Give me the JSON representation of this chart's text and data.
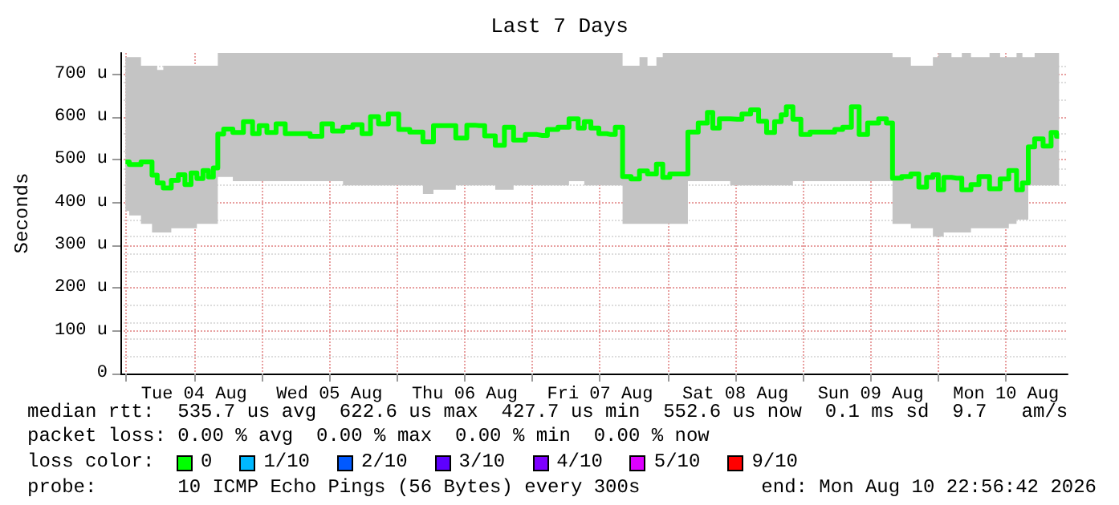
{
  "chart_data": {
    "type": "step",
    "title": "Last 7 Days",
    "ylabel": "Seconds",
    "x": [
      "2026-08-03T23:50",
      "2026-08-04T01:10",
      "2026-08-04T04:00",
      "2026-08-04T05:05",
      "2026-08-04T05:50",
      "2026-08-04T07:15",
      "2026-08-04T08:40",
      "2026-08-04T09:45",
      "2026-08-04T11:00",
      "2026-08-04T11:55",
      "2026-08-04T13:05",
      "2026-08-04T14:05",
      "2026-08-04T15:00",
      "2026-08-04T15:50",
      "2026-08-04T16:35",
      "2026-08-04T17:55",
      "2026-08-04T19:50",
      "2026-08-04T21:40",
      "2026-08-04T23:05",
      "2026-08-05T00:00",
      "2026-08-05T01:50",
      "2026-08-05T03:15",
      "2026-08-05T05:05",
      "2026-08-05T07:25",
      "2026-08-05T09:45",
      "2026-08-05T11:35",
      "2026-08-05T13:30",
      "2026-08-05T15:20",
      "2026-08-05T17:00",
      "2026-08-05T18:35",
      "2026-08-05T20:00",
      "2026-08-05T21:25",
      "2026-08-05T23:30",
      "2026-08-06T01:05",
      "2026-08-06T03:25",
      "2026-08-06T05:45",
      "2026-08-06T07:10",
      "2026-08-06T09:00",
      "2026-08-06T11:50",
      "2026-08-06T12:55",
      "2026-08-06T14:35",
      "2026-08-06T16:30",
      "2026-08-06T18:20",
      "2026-08-06T19:45",
      "2026-08-06T21:35",
      "2026-08-06T23:55",
      "2026-08-07T01:45",
      "2026-08-07T03:35",
      "2026-08-07T05:30",
      "2026-08-07T07:30",
      "2026-08-07T08:45",
      "2026-08-07T09:40",
      "2026-08-07T11:05",
      "2026-08-07T12:30",
      "2026-08-07T13:55",
      "2026-08-07T15:30",
      "2026-08-07T16:30",
      "2026-08-07T18:30",
      "2026-08-07T19:30",
      "2026-08-07T21:20",
      "2026-08-07T22:40",
      "2026-08-07T23:35",
      "2026-08-08T01:10",
      "2026-08-08T02:55",
      "2026-08-08T04:15",
      "2026-08-08T06:35",
      "2026-08-08T07:30",
      "2026-08-08T08:30",
      "2026-08-08T09:50",
      "2026-08-08T12:20",
      "2026-08-08T14:00",
      "2026-08-08T15:25",
      "2026-08-08T16:50",
      "2026-08-08T18:15",
      "2026-08-08T19:40",
      "2026-08-08T20:35",
      "2026-08-08T21:30",
      "2026-08-08T22:55",
      "2026-08-09T00:20",
      "2026-08-09T02:10",
      "2026-08-09T04:55",
      "2026-08-09T06:20",
      "2026-08-09T07:45",
      "2026-08-09T09:25",
      "2026-08-09T10:30",
      "2026-08-09T12:25",
      "2026-08-09T14:25",
      "2026-08-09T15:10",
      "2026-08-09T16:35",
      "2026-08-09T18:25",
      "2026-08-09T19:50",
      "2026-08-09T21:15",
      "2026-08-09T22:35",
      "2026-08-09T23:30",
      "2026-08-10T00:30",
      "2026-08-10T01:25",
      "2026-08-10T03:15",
      "2026-08-10T05:05",
      "2026-08-10T06:30",
      "2026-08-10T07:55",
      "2026-08-10T10:15",
      "2026-08-10T11:40",
      "2026-08-10T13:20",
      "2026-08-10T14:25",
      "2026-08-10T15:25",
      "2026-08-10T16:30",
      "2026-08-10T17:40",
      "2026-08-10T19:30",
      "2026-08-10T20:30",
      "2026-08-10T21:25"
    ],
    "series": [
      {
        "color": "#00ff00",
        "values": [
          495,
          489,
          495,
          464,
          446,
          434,
          452,
          465,
          442,
          469,
          456,
          475,
          460,
          481,
          560,
          572,
          564,
          589,
          561,
          580,
          564,
          584,
          561,
          561,
          555,
          584,
          567,
          576,
          582,
          561,
          601,
          584,
          607,
          571,
          565,
          542,
          580,
          580,
          551,
          581,
          580,
          556,
          534,
          576,
          546,
          559,
          557,
          571,
          576,
          596,
          574,
          589,
          574,
          561,
          559,
          576,
          461,
          455,
          474,
          467,
          490,
          459,
          467,
          467,
          565,
          586,
          611,
          574,
          596,
          595,
          607,
          617,
          590,
          564,
          589,
          605,
          624,
          595,
          559,
          565,
          565,
          571,
          576,
          624,
          559,
          586,
          596,
          586,
          457,
          461,
          467,
          436,
          459,
          465,
          430,
          459,
          457,
          430,
          442,
          461,
          432,
          455,
          475,
          430,
          446,
          530,
          549,
          532,
          564,
          555
        ],
        "lower": [
          380,
          370,
          350,
          330,
          330,
          330,
          340,
          340,
          340,
          340,
          350,
          350,
          350,
          350,
          460,
          460,
          450,
          450,
          450,
          450,
          450,
          450,
          450,
          450,
          450,
          450,
          450,
          440,
          440,
          440,
          440,
          440,
          440,
          440,
          440,
          420,
          430,
          430,
          440,
          440,
          440,
          440,
          430,
          430,
          440,
          440,
          440,
          440,
          440,
          450,
          450,
          440,
          440,
          440,
          440,
          440,
          350,
          350,
          350,
          350,
          350,
          350,
          350,
          350,
          450,
          450,
          450,
          450,
          450,
          440,
          440,
          440,
          440,
          440,
          440,
          440,
          440,
          450,
          450,
          450,
          450,
          450,
          450,
          450,
          450,
          450,
          450,
          450,
          350,
          350,
          340,
          340,
          340,
          320,
          320,
          330,
          330,
          330,
          340,
          340,
          340,
          340,
          350,
          360,
          360,
          440,
          440,
          440,
          440,
          440
        ],
        "upper": [
          740,
          740,
          720,
          720,
          710,
          720,
          720,
          720,
          720,
          720,
          720,
          720,
          720,
          720,
          750,
          750,
          750,
          750,
          750,
          750,
          750,
          750,
          750,
          750,
          750,
          750,
          750,
          750,
          750,
          750,
          750,
          750,
          750,
          750,
          750,
          750,
          750,
          750,
          750,
          750,
          750,
          750,
          750,
          750,
          750,
          750,
          750,
          750,
          750,
          750,
          750,
          750,
          750,
          750,
          750,
          750,
          720,
          720,
          740,
          720,
          740,
          750,
          750,
          750,
          750,
          750,
          750,
          750,
          750,
          750,
          750,
          750,
          750,
          750,
          750,
          750,
          750,
          750,
          750,
          750,
          750,
          750,
          750,
          750,
          750,
          750,
          750,
          750,
          740,
          740,
          720,
          720,
          720,
          740,
          750,
          750,
          740,
          750,
          740,
          740,
          750,
          740,
          740,
          750,
          740,
          740,
          750,
          750,
          750,
          750
        ]
      }
    ],
    "xlim": [
      "2026-08-03T22:56",
      "2026-08-10T22:56"
    ],
    "xticks": [
      {
        "value": "2026-08-04T00:00",
        "label": null
      },
      {
        "value": "2026-08-04T12:00",
        "label": "Tue 04 Aug"
      },
      {
        "value": "2026-08-05T00:00",
        "label": null
      },
      {
        "value": "2026-08-05T12:00",
        "label": "Wed 05 Aug"
      },
      {
        "value": "2026-08-06T00:00",
        "label": null
      },
      {
        "value": "2026-08-06T12:00",
        "label": "Thu 06 Aug"
      },
      {
        "value": "2026-08-07T00:00",
        "label": null
      },
      {
        "value": "2026-08-07T12:00",
        "label": "Fri 07 Aug"
      },
      {
        "value": "2026-08-08T00:00",
        "label": null
      },
      {
        "value": "2026-08-08T12:00",
        "label": "Sat 08 Aug"
      },
      {
        "value": "2026-08-09T00:00",
        "label": null
      },
      {
        "value": "2026-08-09T12:00",
        "label": "Sun 09 Aug"
      },
      {
        "value": "2026-08-10T00:00",
        "label": null
      },
      {
        "value": "2026-08-10T12:00",
        "label": "Mon 10 Aug"
      }
    ],
    "ylim": [
      0,
      750
    ],
    "yticks": [
      0,
      {
        "value": 100,
        "label": "100 u"
      },
      {
        "value": 200,
        "label": "200 u"
      },
      {
        "value": 300,
        "label": "300 u"
      },
      {
        "value": 400,
        "label": "400 u"
      },
      {
        "value": 500,
        "label": "500 u"
      },
      {
        "value": 600,
        "label": "600 u"
      },
      {
        "value": 700,
        "label": "700 u"
      }
    ],
    "grid": true,
    "annotations": [
      "median rtt:  535.7 us avg  622.6 us max  427.7 us min  552.6 us now  0.1 ms sd  9.7   am/s",
      "packet loss: 0.00 % avg  0.00 % max  0.00 % min  0.00 % now",
      "loss color:",
      "0",
      "1/10",
      "2/10",
      "3/10",
      "4/10",
      "5/10",
      "9/10",
      "probe:       10 ICMP Echo Pings (56 Bytes) every 300s",
      "end: Mon Aug 10 22:56:42 2026"
    ]
  }
}
